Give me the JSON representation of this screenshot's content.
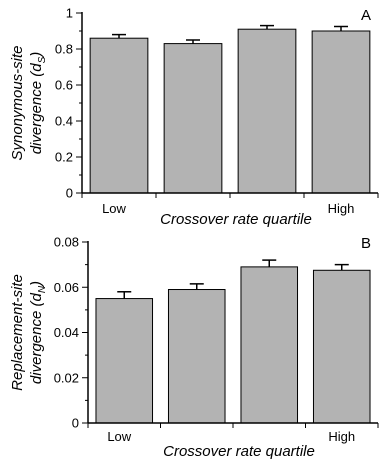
{
  "chart_data": [
    {
      "type": "bar",
      "panel_label": "A",
      "categories": [
        "",
        "",
        "",
        ""
      ],
      "category_labels": {
        "first": "Low",
        "last": "High"
      },
      "values": [
        0.86,
        0.83,
        0.91,
        0.9
      ],
      "error_bars": [
        0.02,
        0.02,
        0.02,
        0.025
      ],
      "xlabel": "Crossover rate quartile",
      "ylabel_line1": "Synonymous-site",
      "ylabel_line2_prefix": "divergence (",
      "ylabel_symbol": "d",
      "ylabel_subscript": "S",
      "ylabel_line2_suffix": ")",
      "ylim": [
        0,
        1
      ],
      "yticks": [
        "0",
        "0.2",
        "0.4",
        "0.6",
        "0.8",
        "1"
      ],
      "ytick_values": [
        0,
        0.2,
        0.4,
        0.6,
        0.8,
        1
      ],
      "bar_color": "#b3b3b3",
      "grid": false
    },
    {
      "type": "bar",
      "panel_label": "B",
      "categories": [
        "",
        "",
        "",
        ""
      ],
      "category_labels": {
        "first": "Low",
        "last": "High"
      },
      "values": [
        0.055,
        0.059,
        0.069,
        0.0675
      ],
      "error_bars": [
        0.003,
        0.0025,
        0.003,
        0.0025
      ],
      "xlabel": "Crossover rate quartile",
      "ylabel_line1": "Replacement-site",
      "ylabel_line2_prefix": "divergence (",
      "ylabel_symbol": "d",
      "ylabel_subscript": "N",
      "ylabel_line2_suffix": ")",
      "ylim": [
        0,
        0.08
      ],
      "yticks": [
        "0",
        "0.02",
        "0.04",
        "0.06",
        "0.08"
      ],
      "ytick_values": [
        0,
        0.02,
        0.04,
        0.06,
        0.08
      ],
      "bar_color": "#b3b3b3",
      "grid": false
    }
  ]
}
